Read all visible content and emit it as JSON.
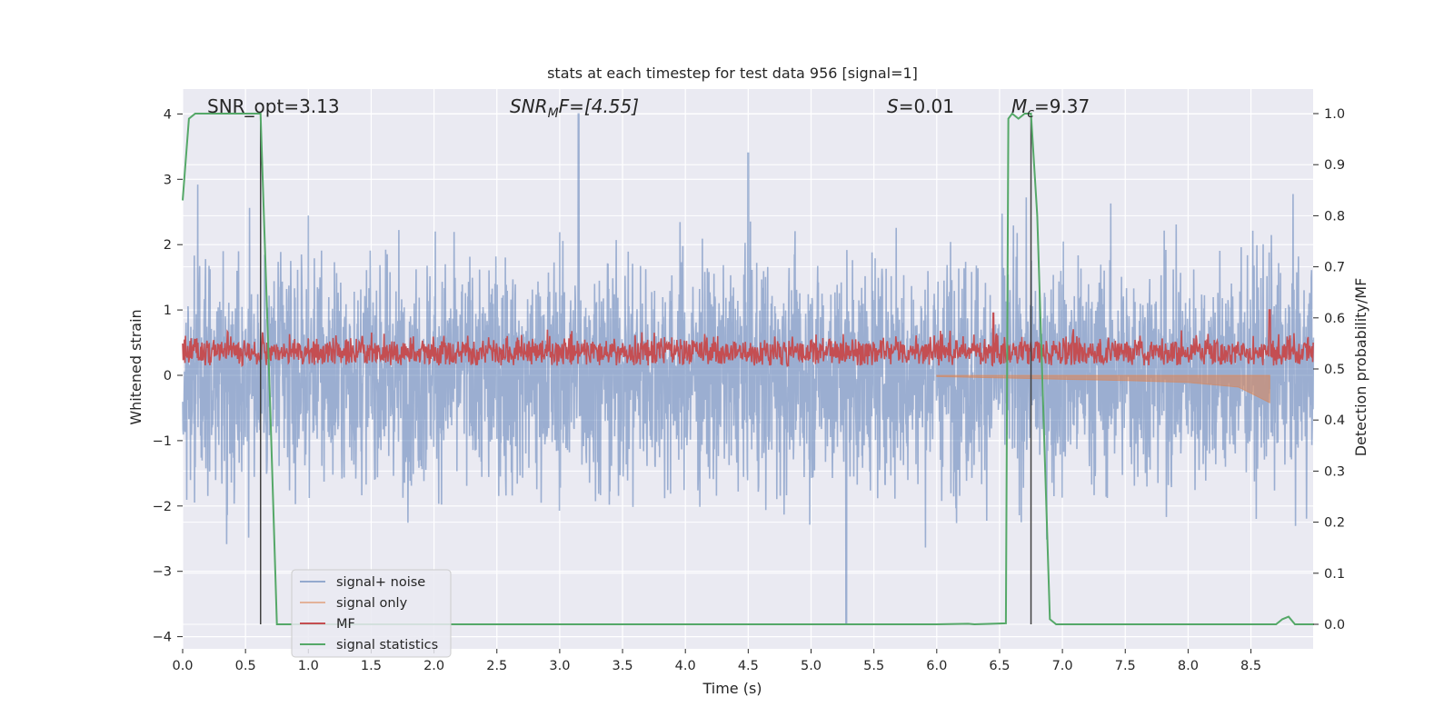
{
  "chart_data": {
    "type": "line",
    "title": "stats at each timestep for test data 956 [signal=1]",
    "xlabel": "Time (s)",
    "ylabel_left": "Whitened strain",
    "ylabel_right": "Detection probability/MF",
    "xlim": [
      0.0,
      9.0
    ],
    "ylim_left": [
      -4.2,
      4.4
    ],
    "ylim_right": [
      -0.05,
      1.04
    ],
    "grid": true,
    "legend_position": "lower-left",
    "x_ticks": [
      "0.0",
      "0.5",
      "1.0",
      "1.5",
      "2.0",
      "2.5",
      "3.0",
      "3.5",
      "4.0",
      "4.5",
      "5.0",
      "5.5",
      "6.0",
      "6.5",
      "7.0",
      "7.5",
      "8.0",
      "8.5"
    ],
    "y_ticks_left": [
      "4",
      "3",
      "2",
      "1",
      "0",
      "−1",
      "−2",
      "−3",
      "−4"
    ],
    "y_ticks_right": [
      "1.0",
      "0.9",
      "0.8",
      "0.7",
      "0.6",
      "0.5",
      "0.4",
      "0.3",
      "0.2",
      "0.1",
      "0.0"
    ],
    "annotations": {
      "snr_opt": "SNR_opt=3.13",
      "snr_mf_base": "SNR",
      "snr_mf_sub": "M",
      "snr_mf_rest": "F=[4.55]",
      "s_name": "S",
      "s_value": "=0.01",
      "mc_base": "M",
      "mc_sub": "c",
      "mc_value": "=9.37"
    },
    "vlines_x": [
      0.62,
      6.75
    ],
    "legend": [
      "signal+ noise",
      "signal only",
      "MF",
      "signal statistics"
    ],
    "colors": {
      "noise": "#4c72b0",
      "signal": "#dd8452",
      "mf": "#c44e52",
      "stats": "#55a868",
      "vline": "#404040",
      "plot_bg": "#eaeaf2"
    },
    "series": [
      {
        "name": "signal+ noise",
        "axis": "left",
        "description_range": [
          -3.8,
          4.0
        ],
        "peaks_x": [
          3.15,
          4.5,
          5.28,
          8.7
        ],
        "peaks_y": [
          4.0,
          3.4,
          -3.8,
          1.0
        ]
      },
      {
        "name": "signal only",
        "axis": "left",
        "x": [
          6.0,
          6.5,
          7.0,
          7.5,
          8.0,
          8.4,
          8.65
        ],
        "upper": [
          0.0,
          0.0,
          0.0,
          0.0,
          0.0,
          0.0,
          0.0
        ],
        "lower": [
          -0.02,
          -0.04,
          -0.06,
          -0.08,
          -0.11,
          -0.18,
          -0.42
        ]
      },
      {
        "name": "MF",
        "axis": "left",
        "x": [
          6.45,
          8.65
        ],
        "y": [
          0.95,
          1.0
        ]
      },
      {
        "name": "signal statistics",
        "axis": "right",
        "x": [
          0.0,
          0.05,
          0.1,
          0.2,
          0.4,
          0.6,
          0.62,
          0.7,
          0.75,
          1.0,
          6.0,
          6.25,
          6.3,
          6.55,
          6.57,
          6.6,
          6.65,
          6.7,
          6.75,
          6.8,
          6.9,
          6.95,
          7.0,
          8.7,
          8.75,
          8.8,
          8.85,
          9.0
        ],
        "y": [
          0.83,
          0.99,
          1.0,
          1.0,
          1.0,
          1.0,
          1.0,
          0.4,
          0.0,
          0.0,
          0.0,
          0.001,
          0.0,
          0.002,
          0.99,
          1.0,
          0.99,
          1.0,
          1.0,
          0.8,
          0.01,
          0.0,
          0.0,
          0.0,
          0.01,
          0.015,
          0.0,
          0.0
        ]
      }
    ]
  }
}
